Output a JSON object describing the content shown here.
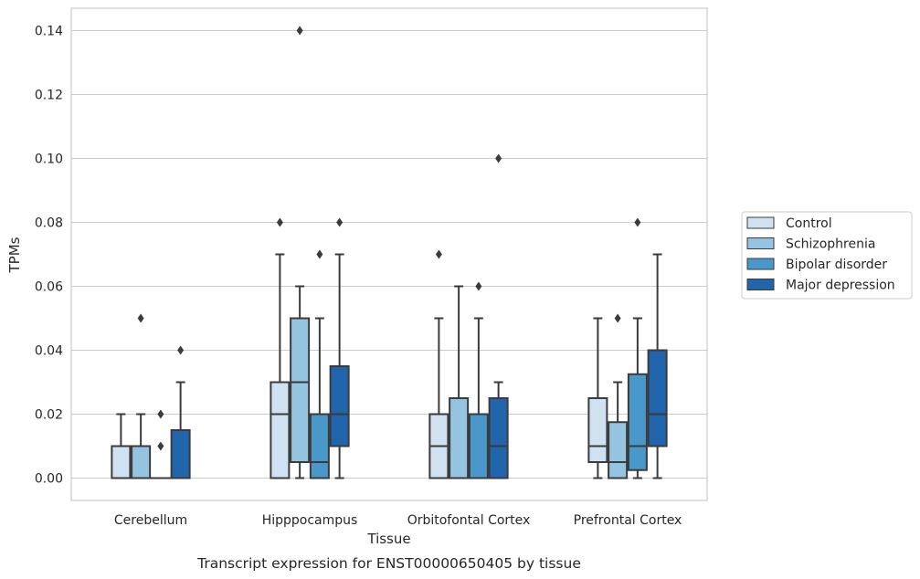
{
  "chart_data": {
    "type": "box",
    "caption": "Transcript expression for ENST00000650405 by tissue",
    "xlabel": "Tissue",
    "ylabel": "TPMs",
    "ylim": [
      -0.007,
      0.147
    ],
    "yticks": [
      0.0,
      0.02,
      0.04,
      0.06,
      0.08,
      0.1,
      0.12,
      0.14
    ],
    "ytick_labels": [
      "0.00",
      "0.02",
      "0.04",
      "0.06",
      "0.08",
      "0.10",
      "0.12",
      "0.14"
    ],
    "grid": true,
    "legend_position": "right-center",
    "categories": [
      "Cerebellum",
      "Hipppocampus",
      "Orbitofontal Cortex",
      "Prefrontal Cortex"
    ],
    "series": [
      {
        "name": "Control",
        "color": "#d0e1f2",
        "boxes": [
          {
            "min": 0.0,
            "q1": 0.0,
            "median": 0.0,
            "q3": 0.01,
            "max": 0.02,
            "outliers": []
          },
          {
            "min": 0.0,
            "q1": 0.0,
            "median": 0.02,
            "q3": 0.03,
            "max": 0.07,
            "outliers": [
              0.08
            ]
          },
          {
            "min": 0.0,
            "q1": 0.0,
            "median": 0.01,
            "q3": 0.02,
            "max": 0.05,
            "outliers": [
              0.07
            ]
          },
          {
            "min": 0.0,
            "q1": 0.005,
            "median": 0.01,
            "q3": 0.025,
            "max": 0.05,
            "outliers": []
          }
        ]
      },
      {
        "name": "Schizophrenia",
        "color": "#94c4df",
        "boxes": [
          {
            "min": 0.0,
            "q1": 0.0,
            "median": 0.0,
            "q3": 0.01,
            "max": 0.02,
            "outliers": [
              0.05
            ]
          },
          {
            "min": 0.0,
            "q1": 0.005,
            "median": 0.03,
            "q3": 0.05,
            "max": 0.06,
            "outliers": [
              0.14
            ]
          },
          {
            "min": 0.0,
            "q1": 0.0,
            "median": 0.0,
            "q3": 0.025,
            "max": 0.06,
            "outliers": []
          },
          {
            "min": 0.0,
            "q1": 0.0,
            "median": 0.005,
            "q3": 0.0175,
            "max": 0.03,
            "outliers": [
              0.05
            ]
          }
        ]
      },
      {
        "name": "Bipolar disorder",
        "color": "#4a98c9",
        "boxes": [
          {
            "min": 0.0,
            "q1": 0.0,
            "median": 0.0,
            "q3": 0.0,
            "max": 0.0,
            "outliers": [
              0.01,
              0.02
            ]
          },
          {
            "min": 0.0,
            "q1": 0.0,
            "median": 0.005,
            "q3": 0.02,
            "max": 0.05,
            "outliers": [
              0.07
            ]
          },
          {
            "min": 0.0,
            "q1": 0.0,
            "median": 0.0,
            "q3": 0.02,
            "max": 0.05,
            "outliers": [
              0.06
            ]
          },
          {
            "min": 0.0,
            "q1": 0.0025,
            "median": 0.01,
            "q3": 0.0325,
            "max": 0.05,
            "outliers": [
              0.08
            ]
          }
        ]
      },
      {
        "name": "Major depression",
        "color": "#2166ac",
        "boxes": [
          {
            "min": 0.0,
            "q1": 0.0,
            "median": 0.0,
            "q3": 0.015,
            "max": 0.03,
            "outliers": [
              0.04
            ]
          },
          {
            "min": 0.0,
            "q1": 0.01,
            "median": 0.02,
            "q3": 0.035,
            "max": 0.07,
            "outliers": [
              0.08
            ]
          },
          {
            "min": 0.0,
            "q1": 0.0,
            "median": 0.01,
            "q3": 0.025,
            "max": 0.03,
            "outliers": [
              0.1
            ]
          },
          {
            "min": 0.0,
            "q1": 0.01,
            "median": 0.02,
            "q3": 0.04,
            "max": 0.07,
            "outliers": []
          }
        ]
      }
    ]
  }
}
